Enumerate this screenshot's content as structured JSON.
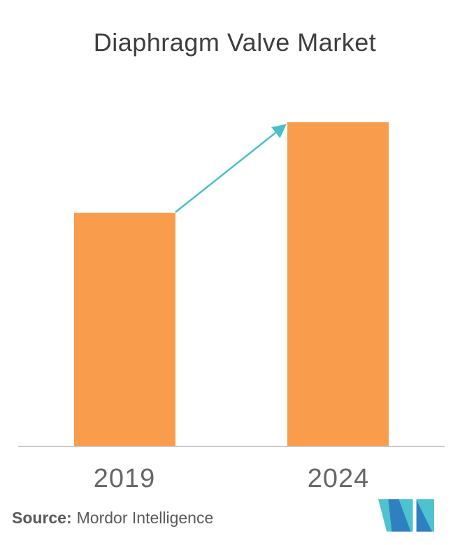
{
  "header": {
    "title": "Diaphragm Valve Market"
  },
  "chart_data": {
    "type": "bar",
    "title": "Diaphragm Valve Market",
    "categories": [
      "2019",
      "2024"
    ],
    "values": [
      72,
      100
    ],
    "xlabel": "",
    "ylabel": "",
    "ylim": [
      0,
      100
    ],
    "grid": false,
    "legend": false,
    "value_axis_visible": false,
    "bar_color": "#F99D4D",
    "arrow_color": "#4BBFC9",
    "axis_line_color": "#C9C9C9",
    "annotations": [
      {
        "type": "growth-arrow",
        "from": "2019",
        "to": "2024"
      }
    ]
  },
  "source": {
    "prefix": "Source:",
    "text": "Mordor Intelligence"
  },
  "logo": {
    "name": "mordor-intelligence-logo",
    "teal": "#4EC3D0",
    "blue": "#2E80C1"
  },
  "colors": {
    "title_text": "#3E3E3E",
    "axis_label_text": "#666666",
    "source_text": "#58595B",
    "background": "#FFFFFF"
  }
}
